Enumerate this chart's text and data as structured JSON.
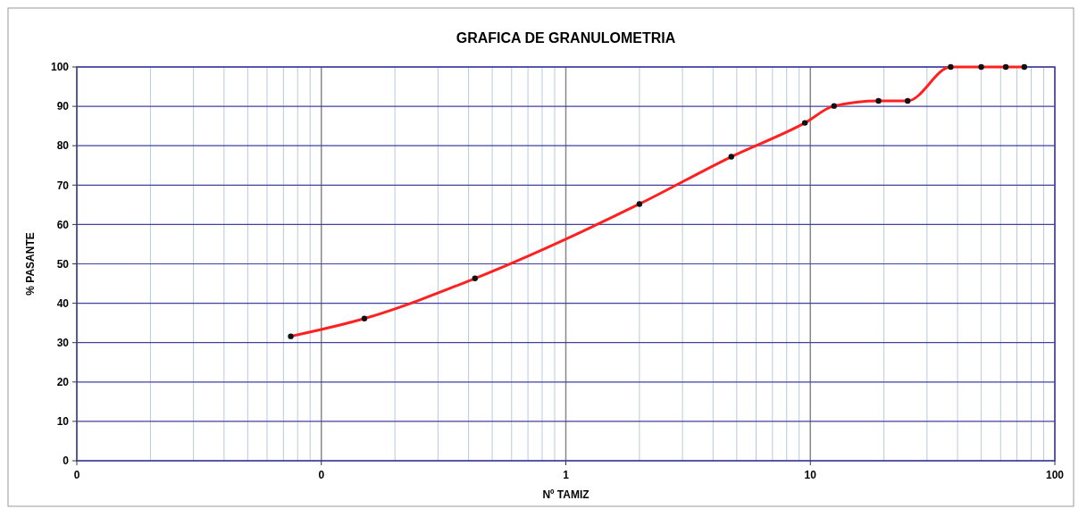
{
  "chart_data": {
    "type": "line",
    "title": "GRAFICA DE GRANULOMETRIA",
    "xlabel": "Nº TAMIZ",
    "ylabel": "% PASANTE",
    "log": "x",
    "x": [
      0.075,
      0.15,
      0.425,
      2,
      4.75,
      9.5,
      12.5,
      19,
      25,
      37.5,
      50,
      63,
      75
    ],
    "series": [
      {
        "color": "#ff2020",
        "values": [
          31.6,
          36.1,
          46.3,
          65.2,
          77.2,
          85.8,
          90.1,
          91.4,
          91.4,
          100,
          100,
          100,
          100
        ]
      }
    ],
    "xlim": [
      0.01,
      100
    ],
    "xticks": [
      {
        "value": 0.01,
        "label": "0"
      },
      {
        "value": 0.1,
        "label": "0"
      },
      1,
      10,
      100
    ],
    "ylim": [
      0,
      100
    ],
    "yticks": [
      0,
      10,
      20,
      30,
      40,
      50,
      60,
      70,
      80,
      90,
      100
    ],
    "grid": true,
    "marker": "circle",
    "line_style": "solid"
  }
}
